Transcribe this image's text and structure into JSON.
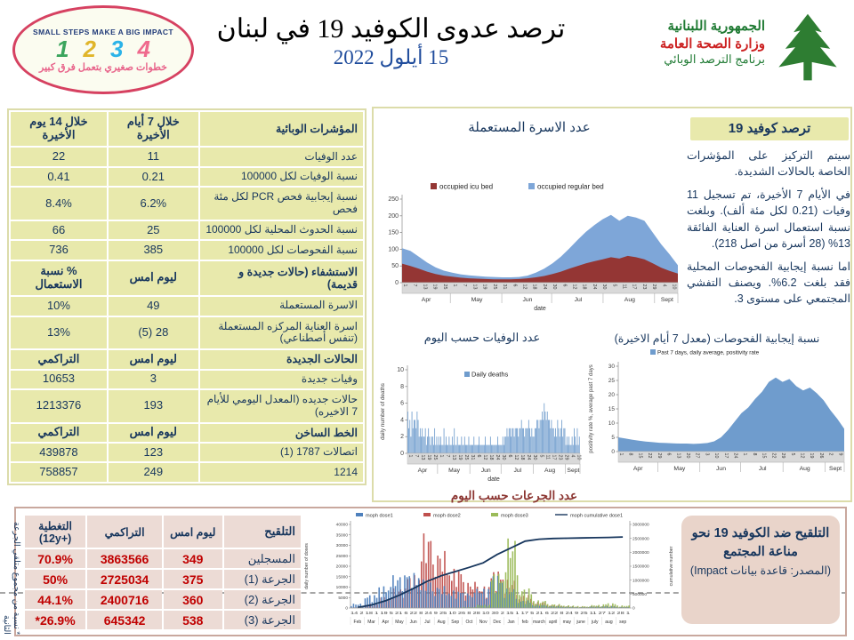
{
  "header": {
    "badge": {
      "top_text": "SMALL STEPS MAKE A BIG IMPACT",
      "numbers": [
        "1",
        "2",
        "3",
        "4"
      ],
      "number_colors": [
        "#3ba55d",
        "#e0b52a",
        "#2bb3e8",
        "#ef6a8d"
      ],
      "bottom_text": "خطوات صغيري بتعمل فرق كبير"
    },
    "title": "ترصد عدوى الكوفيد 19 في لبنان",
    "date": "15 أيلول 2022",
    "moh_logo": {
      "line1": "الجمهورية اللبنانية",
      "line2": "وزارة الصحة العامة",
      "line3": "برنامج الترصد الوبائي"
    }
  },
  "indicators_table": {
    "headers": [
      "المؤشرات الوبائية",
      "خلال 7 أيام الأخيرة",
      "خلال 14 يوم الأخيرة"
    ],
    "rows": [
      {
        "t": "d",
        "c": [
          "عدد الوفيات",
          "11",
          "22"
        ]
      },
      {
        "t": "d",
        "c": [
          "نسبة الوفيات لكل 100000",
          "0.21",
          "0.41"
        ]
      },
      {
        "t": "d",
        "c": [
          "نسبة إيجابية فحص PCR لكل مئة فحص",
          "6.2%",
          "8.4%"
        ]
      },
      {
        "t": "d",
        "c": [
          "نسبة الحدوث المحلية لكل 100000",
          "25",
          "66"
        ]
      },
      {
        "t": "d",
        "c": [
          "نسبة الفحوصات لكل 100000",
          "385",
          "736"
        ]
      },
      {
        "t": "h",
        "c": [
          "الاستشفاء (حالات جديدة و قديمة)",
          "ليوم امس",
          "% نسبة الاستعمال"
        ]
      },
      {
        "t": "d",
        "c": [
          "الاسرة المستعملة",
          "49",
          "10%"
        ]
      },
      {
        "t": "d",
        "c": [
          "اسرة العناية المركزه المستعملة (تنفس أصطناعي)",
          "28 (5)",
          "13%"
        ]
      },
      {
        "t": "h",
        "c": [
          "الحالات الجديدة",
          "ليوم امس",
          "التراكمي"
        ]
      },
      {
        "t": "d",
        "c": [
          "وفيات جديدة",
          "3",
          "10653"
        ]
      },
      {
        "t": "d",
        "c": [
          "حالات جديده (المعدل اليومي للأيام 7 الاخيره)",
          "193",
          "1213376"
        ]
      },
      {
        "t": "h",
        "c": [
          "الخط الساخن",
          "ليوم امس",
          "التراكمي"
        ]
      },
      {
        "t": "d",
        "c": [
          "اتصالات 1787 (1)",
          "123",
          "439878"
        ]
      },
      {
        "t": "d",
        "c": [
          "1214",
          "249",
          "758857"
        ]
      }
    ]
  },
  "surveillance_panel": {
    "title": "ترصد كوفيد 19",
    "paragraphs": [
      "سيتم التركيز على المؤشرات الخاصة بالحالات الشديدة.",
      "في الأيام 7 الأخيرة، تم تسجيل 11 وفيات (0.21 لكل مئة ألف). وبلغت نسبة استعمال اسرة العناية الفائقة 13% (28 أسرة من اصل 218).",
      "اما نسبة إيجابية الفحوصات المحلية فقد بلغت 6.2%. ويصنف التفشي المجتمعي على مستوى 3."
    ]
  },
  "vaccination_table": {
    "headers": [
      "التلقيح",
      "ليوم امس",
      "التراكمي",
      "التغطية (+12y)"
    ],
    "rows": [
      [
        "المسجلين",
        "349",
        "3863566",
        "70.9%"
      ],
      [
        "الجرعة (1)",
        "375",
        "2725034",
        "50%"
      ],
      [
        "الجرعة (2)",
        "360",
        "2400716",
        "44.1%"
      ],
      [
        "الجرعة (3)",
        "538",
        "645342",
        "26.9%*"
      ]
    ]
  },
  "impact_box": {
    "title": "التلقيح ضد الكوفيد 19 نحو مناعة المجتمع",
    "source": "(المصدر: قاعدة بيانات Impact)"
  },
  "footnote_vertical": "* نسبة من مجموع متلقي الجرعة الثانية",
  "chart_data": [
    {
      "id": "occupied-beds",
      "type": "area",
      "title": "عدد الاسرة المستعملة",
      "xlabel": "date",
      "legend": [
        "occupied icu bed",
        "occupied regular bed"
      ],
      "colors": {
        "icu": "#943634",
        "regular": "#7ea6d8"
      },
      "ylim": [
        0,
        250
      ],
      "yticks": [
        0,
        50,
        100,
        150,
        200,
        250
      ],
      "months": [
        "Apr",
        "May",
        "Jun",
        "Jul",
        "Aug",
        "Sept"
      ],
      "month_spans": [
        [
          0,
          29
        ],
        [
          30,
          60
        ],
        [
          61,
          90
        ],
        [
          91,
          121
        ],
        [
          122,
          152
        ],
        [
          153,
          166
        ]
      ],
      "x_tick_labels": [
        "1",
        "7",
        "13",
        "19",
        "25",
        "1",
        "7",
        "13",
        "19",
        "25",
        "31",
        "6",
        "12",
        "18",
        "24",
        "30",
        "6",
        "12",
        "18",
        "24",
        "30",
        "5",
        "11",
        "17",
        "23",
        "29",
        "4",
        "10"
      ],
      "x_tick_days": [
        0,
        6,
        12,
        18,
        24,
        30,
        36,
        42,
        48,
        54,
        60,
        66,
        72,
        78,
        84,
        90,
        96,
        102,
        108,
        114,
        120,
        126,
        132,
        138,
        144,
        150,
        156,
        162
      ],
      "total_days": 167,
      "series": {
        "regular": [
          103,
          95,
          78,
          60,
          46,
          36,
          30,
          25,
          22,
          20,
          18,
          17,
          16,
          16,
          17,
          21,
          30,
          42,
          58,
          78,
          102,
          128,
          152,
          172,
          190,
          203,
          185,
          200,
          195,
          185,
          150,
          115,
          85,
          52
        ],
        "icu": [
          57,
          50,
          42,
          33,
          26,
          21,
          18,
          15,
          13,
          12,
          11,
          10,
          10,
          10,
          11,
          13,
          16,
          20,
          26,
          33,
          42,
          50,
          58,
          64,
          70,
          76,
          72,
          80,
          76,
          70,
          58,
          45,
          35,
          27
        ]
      }
    },
    {
      "id": "daily-deaths",
      "type": "bar",
      "title": "عدد الوفيات حسب اليوم",
      "ylabel": "daily number of deaths",
      "xlabel": "date",
      "legend": [
        "Daily deaths"
      ],
      "color": "#6f9ccd",
      "ylim": [
        0,
        10
      ],
      "yticks": [
        0,
        2,
        4,
        6,
        8,
        10
      ],
      "months": [
        "Apr",
        "May",
        "Jun",
        "Jul",
        "Aug",
        "Sept"
      ],
      "month_spans": [
        [
          0,
          29
        ],
        [
          30,
          60
        ],
        [
          61,
          90
        ],
        [
          91,
          121
        ],
        [
          122,
          152
        ],
        [
          153,
          166
        ]
      ],
      "x_tick_labels": [
        "1",
        "7",
        "13",
        "19",
        "25",
        "1",
        "7",
        "13",
        "19",
        "25",
        "31",
        "6",
        "12",
        "18",
        "24",
        "30",
        "6",
        "12",
        "18",
        "24",
        "30",
        "5",
        "11",
        "17",
        "23",
        "29",
        "4",
        "10"
      ],
      "x_tick_days": [
        0,
        6,
        12,
        18,
        24,
        30,
        36,
        42,
        48,
        54,
        60,
        66,
        72,
        78,
        84,
        90,
        96,
        102,
        108,
        114,
        120,
        126,
        132,
        138,
        144,
        150,
        156,
        162
      ],
      "total_days": 167,
      "values": [
        5,
        3,
        4,
        2,
        5,
        3,
        4,
        4,
        3,
        5,
        4,
        2,
        3,
        2,
        3,
        2,
        2,
        3,
        1,
        2,
        3,
        2,
        1,
        2,
        2,
        1,
        3,
        1,
        2,
        1,
        2,
        1,
        2,
        1,
        1,
        3,
        1,
        2,
        1,
        1,
        2,
        1,
        1,
        2,
        1,
        3,
        1,
        1,
        2,
        1,
        1,
        1,
        2,
        1,
        1,
        2,
        1,
        1,
        1,
        2,
        1,
        1,
        1,
        1,
        2,
        1,
        1,
        1,
        1,
        2,
        1,
        1,
        1,
        1,
        1,
        2,
        1,
        1,
        1,
        1,
        2,
        1,
        1,
        1,
        1,
        1,
        1,
        2,
        1,
        1,
        1,
        1,
        2,
        1,
        2,
        2,
        3,
        2,
        3,
        3,
        2,
        3,
        3,
        2,
        3,
        3,
        3,
        2,
        3,
        3,
        4,
        3,
        3,
        2,
        3,
        3,
        3,
        4,
        3,
        2,
        3,
        2,
        2,
        3,
        3,
        4,
        4,
        3,
        4,
        4,
        5,
        4,
        6,
        5,
        4,
        5,
        4,
        4,
        3,
        4,
        3,
        3,
        2,
        3,
        2,
        4,
        3,
        2,
        3,
        4,
        2,
        3,
        3,
        1,
        2,
        1,
        2,
        1,
        1,
        2,
        1,
        3,
        2,
        1,
        3,
        1,
        2
      ]
    },
    {
      "id": "positivity-rate",
      "type": "area",
      "title": "نسبة إيجابية الفحوصات (معدل 7 أيام الاخيرة)",
      "ylabel": "positivity rate %, average past 7 days",
      "legend": [
        "Past 7 days, daily average, positivity rate"
      ],
      "color": "#6f9ccd",
      "ylim": [
        0,
        30
      ],
      "yticks": [
        0,
        5,
        10,
        15,
        20,
        25,
        30
      ],
      "months": [
        "Apr",
        "May",
        "Jun",
        "Jul",
        "Aug",
        "Sept"
      ],
      "month_spans": [
        [
          0,
          29
        ],
        [
          30,
          60
        ],
        [
          61,
          90
        ],
        [
          91,
          121
        ],
        [
          122,
          152
        ],
        [
          153,
          166
        ]
      ],
      "x_tick_labels": [
        "1",
        "8",
        "15",
        "22",
        "29",
        "6",
        "13",
        "20",
        "27",
        "3",
        "10",
        "17",
        "24",
        "1",
        "8",
        "15",
        "22",
        "29",
        "5",
        "12",
        "19",
        "26",
        "2",
        "9"
      ],
      "x_tick_days": [
        0,
        7,
        14,
        21,
        28,
        35,
        42,
        49,
        56,
        63,
        70,
        77,
        84,
        91,
        98,
        105,
        112,
        119,
        126,
        133,
        140,
        147,
        154,
        161
      ],
      "total_days": 167,
      "values": [
        5.0,
        4.6,
        4.2,
        3.8,
        3.5,
        3.3,
        3.1,
        3.0,
        2.9,
        2.8,
        2.8,
        2.7,
        2.8,
        3.0,
        3.6,
        5.0,
        7.5,
        10.5,
        13.5,
        15.5,
        18.5,
        21.0,
        24.5,
        26.0,
        24.5,
        25.5,
        23.0,
        21.5,
        22.5,
        20.5,
        18.0,
        14.5,
        11.5,
        8.0
      ]
    },
    {
      "id": "daily-doses",
      "type": "bar-line-dual",
      "title": "عدد الجرعات حسب اليوم",
      "ylabel_left": "daily number of doses",
      "ylabel_right": "cumulative number",
      "legend": [
        "moph dose1",
        "moph dose2",
        "moph dose3",
        "moph cumulative dose1"
      ],
      "colors": [
        "#4f81bd",
        "#c0504d",
        "#9bbb59",
        "#17365d"
      ],
      "ylim_left": [
        0,
        40000
      ],
      "yticks_left": [
        0,
        5000,
        10000,
        15000,
        20000,
        25000,
        30000,
        35000,
        40000
      ],
      "ylim_right": [
        0,
        3000000
      ],
      "yticks_right": [
        0,
        500000,
        1000000,
        1500000,
        2000000,
        2500000,
        3000000
      ],
      "months": [
        "Feb",
        "Mar",
        "Apr",
        "May",
        "Jun",
        "Jul",
        "Aug",
        "Sep",
        "Oct",
        "Nov",
        "Dec",
        "Jan",
        "feb",
        "march",
        "april",
        "may",
        "june",
        "july",
        "aug",
        "sep"
      ],
      "micro_ticks": "14 2 18 1 19 5 21 6 22 8 24 9 25 10 26 8 28 10 30 2 15 1 17 5 21 6 22 8 24 9 25 11 27 12 28 1",
      "series": {
        "dose1": [
          2000,
          6000,
          10000,
          15000,
          16000,
          13000,
          10000,
          8000,
          7000,
          9000,
          15000,
          9000,
          3500,
          1500,
          900,
          600,
          400,
          700,
          900,
          500
        ],
        "dose2": [
          300,
          2000,
          5000,
          9000,
          15000,
          34000,
          26000,
          18000,
          12000,
          10000,
          17000,
          13000,
          6000,
          2800,
          1400,
          900,
          600,
          900,
          1100,
          600
        ],
        "dose3": [
          0,
          0,
          0,
          0,
          0,
          0,
          100,
          200,
          400,
          1500,
          16000,
          32000,
          9000,
          3500,
          1800,
          1200,
          900,
          1400,
          2200,
          1200
        ],
        "cumulative": [
          20000,
          110000,
          260000,
          460000,
          700000,
          960000,
          1160000,
          1310000,
          1460000,
          1620000,
          1920000,
          2160000,
          2400000,
          2470000,
          2495000,
          2505000,
          2515000,
          2525000,
          2535000,
          2550000
        ]
      }
    }
  ]
}
